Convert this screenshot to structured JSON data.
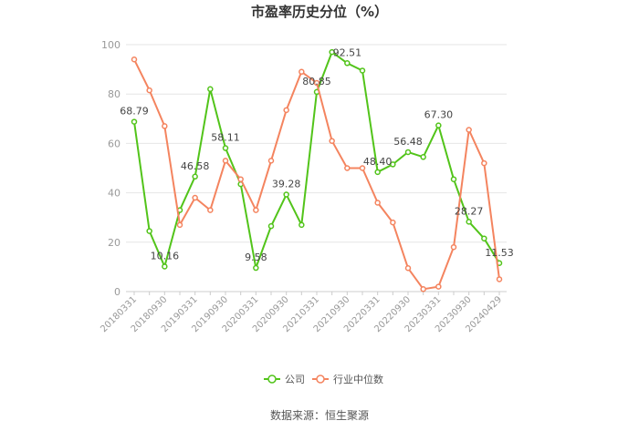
{
  "chart_data": {
    "type": "line",
    "title": "市盈率历史分位（%）",
    "source": "数据来源：恒生聚源",
    "x_tick_labels": [
      "20180331",
      "20180930",
      "20190331",
      "20190930",
      "20200331",
      "20200930",
      "20210331",
      "20210930",
      "20220331",
      "20220930",
      "20230331",
      "20230930",
      "20240429"
    ],
    "y_ticks": [
      "0",
      "20",
      "40",
      "60",
      "80",
      "100"
    ],
    "ylim": [
      0,
      100
    ],
    "grid": "horizontal",
    "legend_position": "bottom-center",
    "series": [
      {
        "name": "公司",
        "color": "#52c41a",
        "values": [
          68.79,
          24.5,
          10.16,
          33.0,
          46.58,
          82.0,
          58.11,
          43.5,
          9.58,
          26.5,
          39.28,
          27.0,
          80.85,
          97.0,
          92.51,
          89.5,
          48.4,
          51.5,
          56.48,
          54.5,
          67.3,
          45.5,
          28.27,
          21.5,
          11.53
        ],
        "labels": {
          "0": "68.79",
          "2": "10.16",
          "4": "46.58",
          "6": "58.11",
          "8": "9.58",
          "10": "39.28",
          "12": "80.85",
          "14": "92.51",
          "16": "48.40",
          "18": "56.48",
          "20": "67.30",
          "22": "28.27",
          "24": "11.53"
        }
      },
      {
        "name": "行业中位数",
        "color": "#f4845f",
        "values": [
          94.0,
          81.5,
          67.0,
          27.0,
          38.0,
          33.0,
          53.0,
          45.5,
          33.0,
          53.0,
          73.5,
          89.0,
          84.5,
          61.0,
          50.0,
          50.0,
          36.0,
          28.0,
          9.5,
          1.0,
          2.0,
          18.0,
          65.5,
          52.0,
          5.0
        ]
      }
    ]
  }
}
